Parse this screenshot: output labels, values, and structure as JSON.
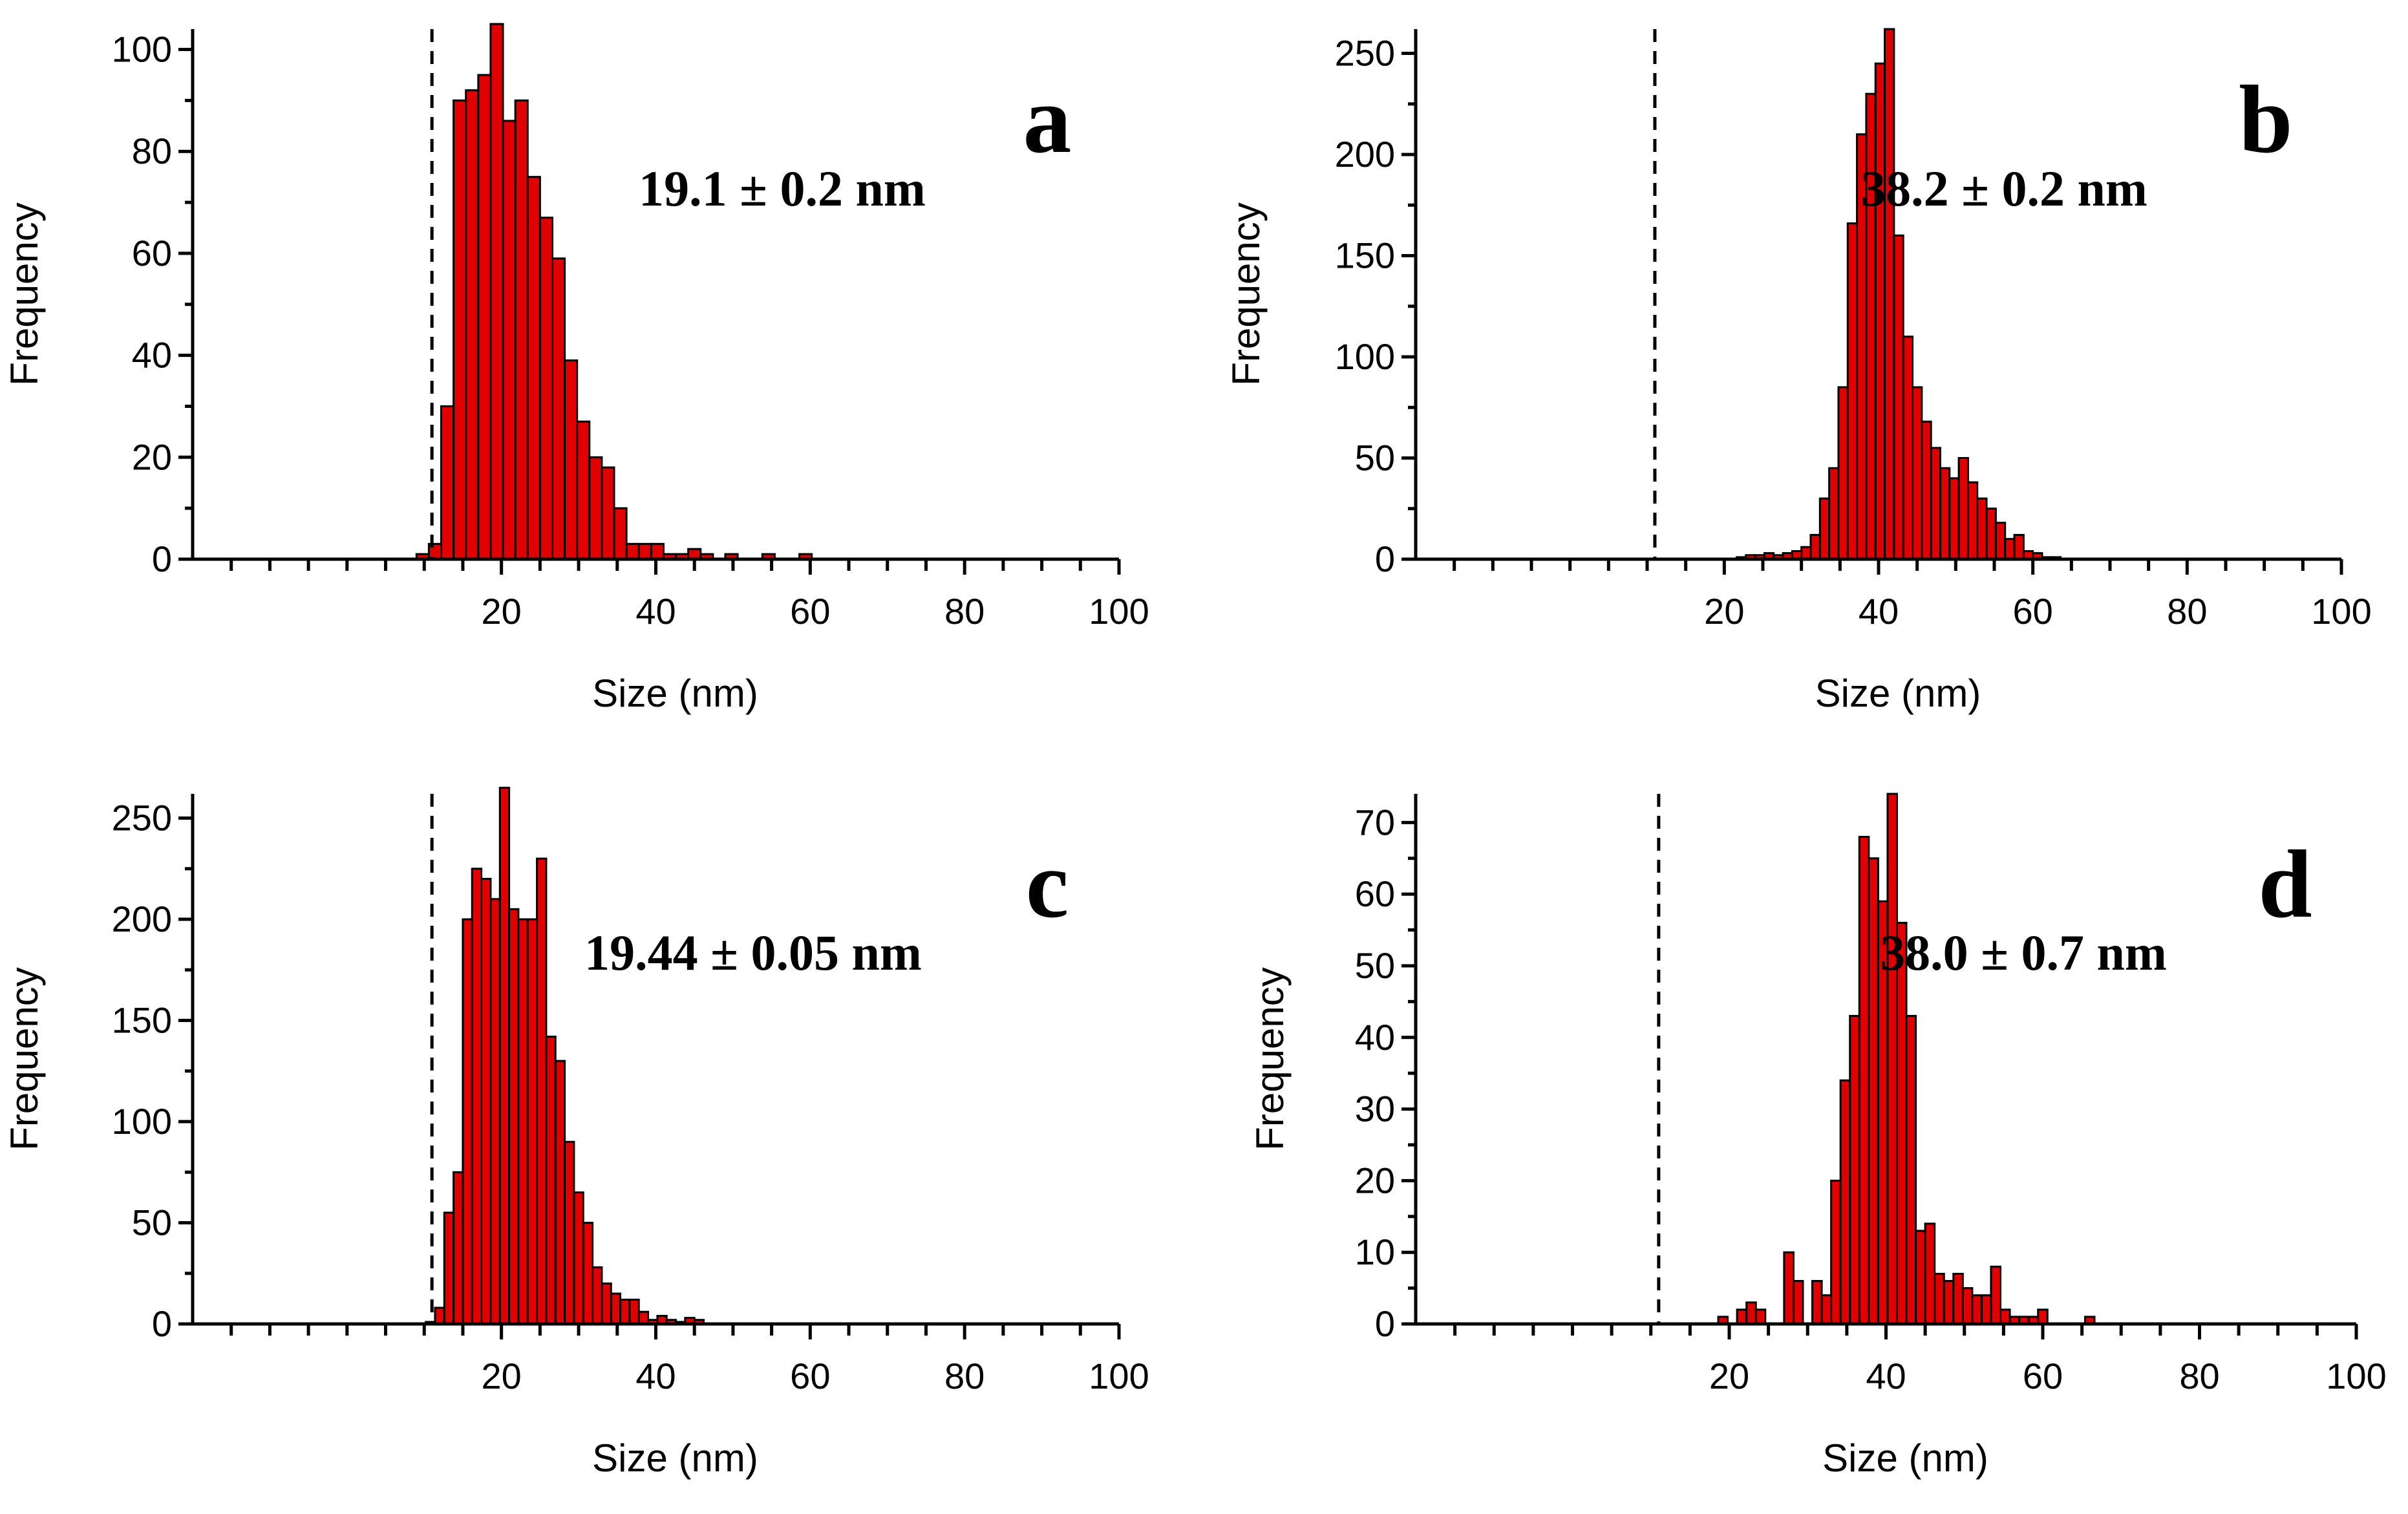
{
  "colors": {
    "bar_fill": "#e00000",
    "bar_edge": "#000000",
    "axis": "#000000"
  },
  "chart_data": [
    {
      "id": "a",
      "type": "bar",
      "panel_label": "a",
      "annotation": "19.1 ± 0.2 nm",
      "xlabel": "Size (nm)",
      "ylabel": "Frequency",
      "xlim": [
        -20,
        100
      ],
      "ylim": [
        0,
        104
      ],
      "xticks": [
        20,
        40,
        60,
        80,
        100
      ],
      "yticks": [
        0,
        20,
        40,
        60,
        80,
        100
      ],
      "bin_width": 1.6,
      "reference_line_x": 11,
      "bins_start": [
        9.0,
        10.6,
        12.2,
        13.8,
        15.4,
        17.0,
        18.6,
        20.2,
        21.8,
        23.4,
        25.0,
        26.6,
        28.2,
        29.8,
        31.4,
        33.0,
        34.6,
        36.2,
        37.8,
        39.4,
        41.0,
        42.6,
        44.2,
        45.8,
        47.4,
        49.0,
        50.6,
        52.2,
        53.8,
        55.4,
        57.0,
        58.6
      ],
      "values": [
        1,
        3,
        30,
        90,
        92,
        95,
        105,
        86,
        90,
        75,
        67,
        59,
        39,
        27,
        20,
        18,
        10,
        3,
        3,
        3,
        1,
        1,
        2,
        1,
        0,
        1,
        0,
        0,
        1,
        0,
        0,
        1
      ]
    },
    {
      "id": "b",
      "type": "bar",
      "panel_label": "b",
      "annotation": "38.2 ± 0.2 nm",
      "xlabel": "Size (nm)",
      "ylabel": "Frequency",
      "xlim": [
        -20,
        100
      ],
      "ylim": [
        0,
        262
      ],
      "xticks": [
        20,
        40,
        60,
        80,
        100
      ],
      "yticks": [
        0,
        50,
        100,
        150,
        200,
        250
      ],
      "bin_width": 1.2,
      "reference_line_x": 11,
      "bins_start": [
        21.6,
        22.8,
        24.0,
        25.2,
        26.4,
        27.6,
        28.8,
        30.0,
        31.2,
        32.4,
        33.6,
        34.8,
        36.0,
        37.2,
        38.4,
        39.6,
        40.8,
        42.0,
        43.2,
        44.4,
        45.6,
        46.8,
        48.0,
        49.2,
        50.4,
        51.6,
        52.8,
        54.0,
        55.2,
        56.4,
        57.6,
        58.8,
        60.0,
        61.2,
        62.4
      ],
      "values": [
        1,
        2,
        2,
        3,
        2,
        3,
        4,
        6,
        12,
        30,
        45,
        85,
        166,
        210,
        230,
        245,
        262,
        160,
        110,
        85,
        68,
        55,
        45,
        40,
        50,
        38,
        30,
        25,
        18,
        10,
        12,
        4,
        3,
        1,
        1
      ]
    },
    {
      "id": "c",
      "type": "bar",
      "panel_label": "c",
      "annotation": "19.44 ± 0.05 nm",
      "xlabel": "Size (nm)",
      "ylabel": "Frequency",
      "xlim": [
        -20,
        100
      ],
      "ylim": [
        0,
        262
      ],
      "xticks": [
        20,
        40,
        60,
        80,
        100
      ],
      "yticks": [
        0,
        50,
        100,
        150,
        200,
        250
      ],
      "bin_width": 1.2,
      "reference_line_x": 11,
      "bins_start": [
        10.2,
        11.4,
        12.6,
        13.8,
        15.0,
        16.2,
        17.4,
        18.6,
        19.8,
        21.0,
        22.2,
        23.4,
        24.6,
        25.8,
        27.0,
        28.2,
        29.4,
        30.6,
        31.8,
        33.0,
        34.2,
        35.4,
        36.6,
        37.8,
        39.0,
        40.2,
        41.4,
        42.6,
        43.8,
        45.0
      ],
      "values": [
        1,
        8,
        55,
        75,
        200,
        225,
        220,
        210,
        265,
        205,
        200,
        200,
        230,
        142,
        130,
        90,
        65,
        50,
        28,
        20,
        15,
        12,
        12,
        6,
        2,
        4,
        2,
        1,
        3,
        2
      ]
    },
    {
      "id": "d",
      "type": "bar",
      "panel_label": "d",
      "annotation": "38.0 ± 0.7 nm",
      "xlabel": "Size (nm)",
      "ylabel": "Frequency",
      "xlim": [
        -20,
        100
      ],
      "ylim": [
        0,
        74
      ],
      "xticks": [
        20,
        40,
        60,
        80,
        100
      ],
      "yticks": [
        0,
        10,
        20,
        30,
        40,
        50,
        60,
        70
      ],
      "bin_width": 1.2,
      "reference_line_x": 11,
      "bins_start": [
        18.6,
        21.0,
        22.2,
        23.4,
        27.0,
        28.2,
        30.6,
        31.8,
        33.0,
        34.2,
        35.4,
        36.6,
        37.8,
        39.0,
        40.2,
        41.4,
        42.6,
        43.8,
        45.0,
        46.2,
        47.4,
        48.6,
        49.8,
        51.0,
        52.2,
        53.4,
        54.6,
        55.8,
        57.0,
        58.2,
        59.4,
        65.4
      ],
      "values": [
        1,
        2,
        3,
        2,
        10,
        6,
        6,
        4,
        20,
        34,
        43,
        68,
        65,
        59,
        74,
        56,
        43,
        13,
        14,
        7,
        6,
        7,
        5,
        4,
        4,
        8,
        2,
        1,
        1,
        1,
        2,
        1
      ]
    }
  ]
}
